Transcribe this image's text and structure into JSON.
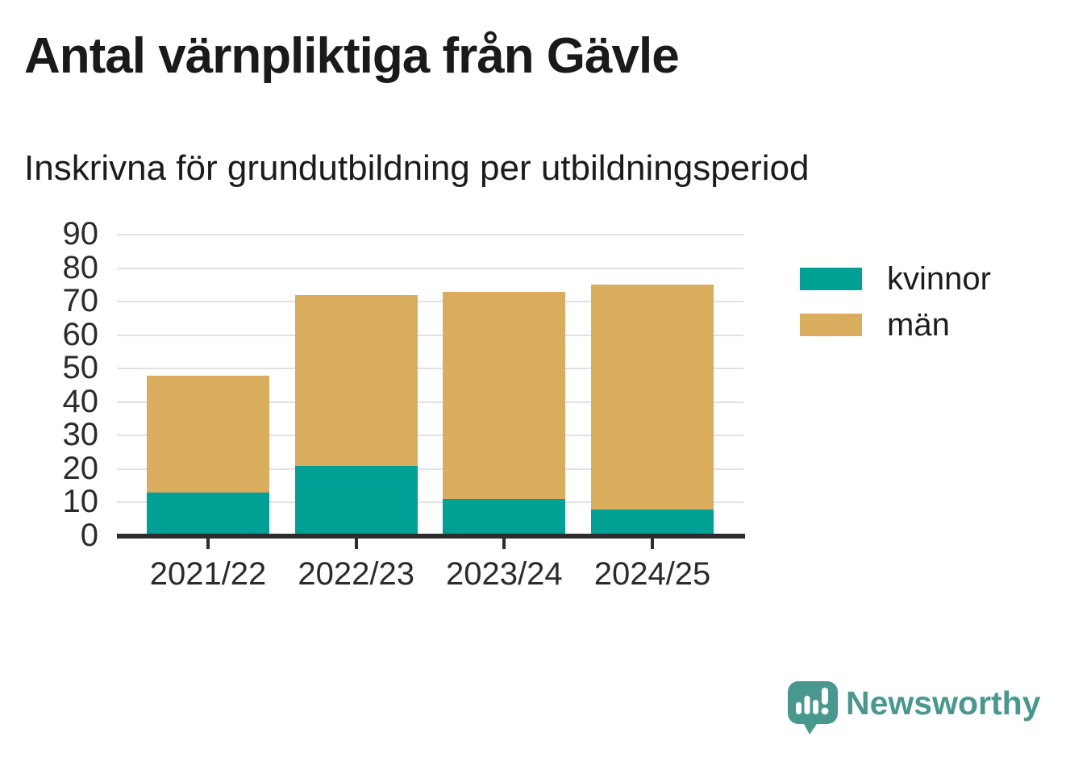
{
  "header": {
    "title": "Antal värnpliktiga från Gävle",
    "subtitle": "Inskrivna för grundutbildning per utbildningsperiod"
  },
  "chart_data": {
    "type": "bar",
    "stacked": true,
    "title": "Antal värnpliktiga från Gävle",
    "subtitle": "Inskrivna för grundutbildning per utbildningsperiod",
    "categories": [
      "2021/22",
      "2022/23",
      "2023/24",
      "2024/25"
    ],
    "series": [
      {
        "name": "kvinnor",
        "color": "#00A094",
        "values": [
          13,
          21,
          11,
          8
        ]
      },
      {
        "name": "män",
        "color": "#DAAD5E",
        "values": [
          35,
          51,
          62,
          67
        ]
      }
    ],
    "stack_totals": [
      48,
      72,
      73,
      75
    ],
    "xlabel": "",
    "ylabel": "",
    "ylim": [
      0,
      90
    ],
    "yticks": [
      0,
      10,
      20,
      30,
      40,
      50,
      60,
      70,
      80,
      90
    ],
    "grid": true,
    "legend_position": "right-top"
  },
  "legend": {
    "items": [
      {
        "label": "kvinnor",
        "color": "#00A094"
      },
      {
        "label": "män",
        "color": "#DAAD5E"
      }
    ]
  },
  "branding": {
    "logo_text": "Newsworthy",
    "logo_color": "#48988E",
    "logo_icon": "speech-bubble-bar-chart"
  },
  "colors": {
    "axis": "#2D2D2D",
    "gridline": "#E1E1E1",
    "title_text": "#1A1A1A",
    "tick_text": "#2B2B2B"
  }
}
